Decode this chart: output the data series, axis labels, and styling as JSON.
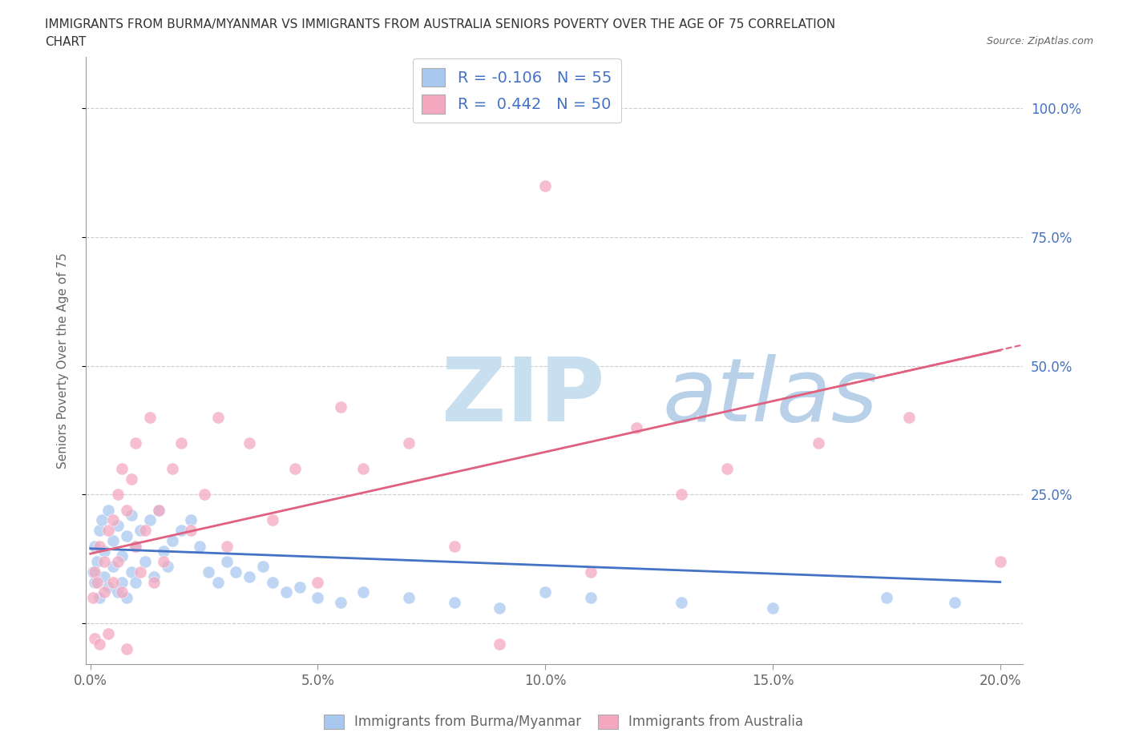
{
  "title_line1": "IMMIGRANTS FROM BURMA/MYANMAR VS IMMIGRANTS FROM AUSTRALIA SENIORS POVERTY OVER THE AGE OF 75 CORRELATION",
  "title_line2": "CHART",
  "source": "Source: ZipAtlas.com",
  "watermark_zip": "ZIP",
  "watermark_atlas": "atlas",
  "ylabel": "Seniors Poverty Over the Age of 75",
  "xlim": [
    -0.001,
    0.205
  ],
  "ylim": [
    -0.08,
    1.1
  ],
  "yticks": [
    0.0,
    0.25,
    0.5,
    0.75,
    1.0
  ],
  "right_ytick_labels": [
    "",
    "25.0%",
    "50.0%",
    "75.0%",
    "100.0%"
  ],
  "xticks": [
    0.0,
    0.05,
    0.1,
    0.15,
    0.2
  ],
  "xtick_labels": [
    "0.0%",
    "5.0%",
    "10.0%",
    "15.0%",
    "20.0%"
  ],
  "legend_labels": [
    "Immigrants from Burma/Myanmar",
    "Immigrants from Australia"
  ],
  "R_burma": -0.106,
  "N_burma": 55,
  "R_australia": 0.442,
  "N_australia": 50,
  "blue_color": "#A8C8F0",
  "pink_color": "#F4A8C0",
  "line_blue": "#4472C4",
  "line_pink": "#E06080",
  "background_color": "#FFFFFF",
  "grid_color": "#CCCCCC",
  "title_color": "#333333",
  "axis_label_color": "#666666",
  "right_axis_color": "#4472C4",
  "watermark_zip_color": "#C8DFF0",
  "watermark_atlas_color": "#B8D0E8",
  "blue_scatter_x": [
    0.0005,
    0.001,
    0.001,
    0.0015,
    0.002,
    0.002,
    0.0025,
    0.003,
    0.003,
    0.004,
    0.004,
    0.005,
    0.005,
    0.006,
    0.006,
    0.007,
    0.007,
    0.008,
    0.008,
    0.009,
    0.009,
    0.01,
    0.01,
    0.011,
    0.012,
    0.013,
    0.014,
    0.015,
    0.016,
    0.017,
    0.018,
    0.02,
    0.022,
    0.024,
    0.026,
    0.028,
    0.03,
    0.032,
    0.035,
    0.038,
    0.04,
    0.043,
    0.046,
    0.05,
    0.055,
    0.06,
    0.07,
    0.08,
    0.09,
    0.1,
    0.11,
    0.13,
    0.15,
    0.175,
    0.19
  ],
  "blue_scatter_y": [
    0.1,
    0.15,
    0.08,
    0.12,
    0.18,
    0.05,
    0.2,
    0.09,
    0.14,
    0.22,
    0.07,
    0.16,
    0.11,
    0.19,
    0.06,
    0.13,
    0.08,
    0.17,
    0.05,
    0.21,
    0.1,
    0.15,
    0.08,
    0.18,
    0.12,
    0.2,
    0.09,
    0.22,
    0.14,
    0.11,
    0.16,
    0.18,
    0.2,
    0.15,
    0.1,
    0.08,
    0.12,
    0.1,
    0.09,
    0.11,
    0.08,
    0.06,
    0.07,
    0.05,
    0.04,
    0.06,
    0.05,
    0.04,
    0.03,
    0.06,
    0.05,
    0.04,
    0.03,
    0.05,
    0.04
  ],
  "pink_scatter_x": [
    0.0005,
    0.001,
    0.001,
    0.0015,
    0.002,
    0.002,
    0.003,
    0.003,
    0.004,
    0.004,
    0.005,
    0.005,
    0.006,
    0.006,
    0.007,
    0.007,
    0.008,
    0.008,
    0.009,
    0.01,
    0.01,
    0.011,
    0.012,
    0.013,
    0.014,
    0.015,
    0.016,
    0.018,
    0.02,
    0.022,
    0.025,
    0.028,
    0.03,
    0.035,
    0.04,
    0.045,
    0.05,
    0.055,
    0.06,
    0.07,
    0.08,
    0.09,
    0.1,
    0.11,
    0.12,
    0.13,
    0.14,
    0.16,
    0.18,
    0.2
  ],
  "pink_scatter_y": [
    0.05,
    0.1,
    -0.03,
    0.08,
    0.15,
    -0.04,
    0.12,
    0.06,
    0.18,
    -0.02,
    0.2,
    0.08,
    0.25,
    0.12,
    0.3,
    0.06,
    0.22,
    -0.05,
    0.28,
    0.15,
    0.35,
    0.1,
    0.18,
    0.4,
    0.08,
    0.22,
    0.12,
    0.3,
    0.35,
    0.18,
    0.25,
    0.4,
    0.15,
    0.35,
    0.2,
    0.3,
    0.08,
    0.42,
    0.3,
    0.35,
    0.15,
    -0.04,
    0.85,
    0.1,
    0.38,
    0.25,
    0.3,
    0.35,
    0.4,
    0.12
  ],
  "blue_line_y_at_0": 0.145,
  "blue_line_y_at_20": 0.08,
  "pink_line_y_at_0": 0.135,
  "pink_line_y_at_20": 0.53
}
